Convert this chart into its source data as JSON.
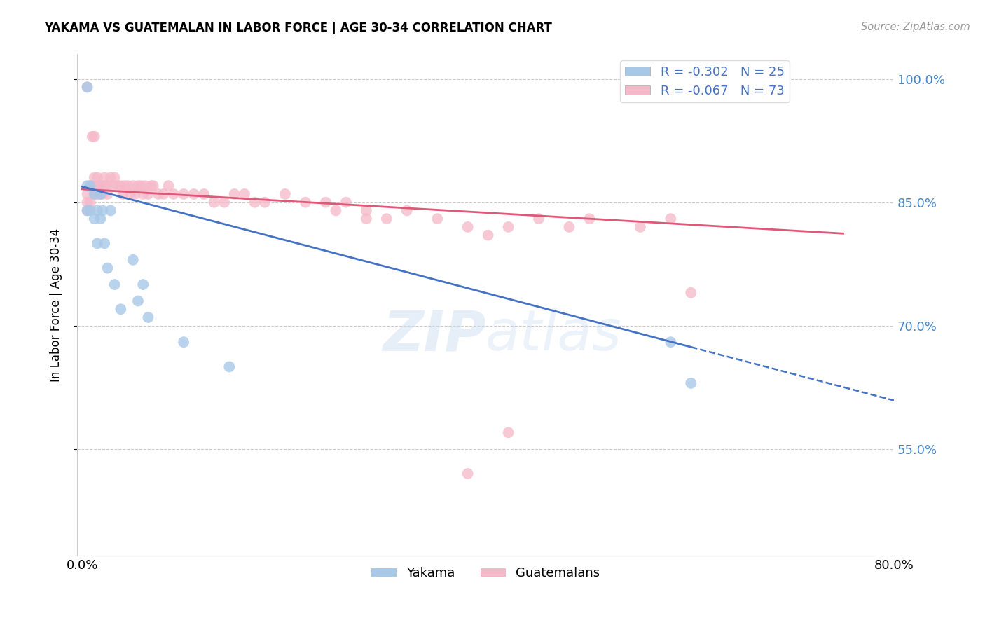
{
  "title": "YAKAMA VS GUATEMALAN IN LABOR FORCE | AGE 30-34 CORRELATION CHART",
  "source": "Source: ZipAtlas.com",
  "ylabel": "In Labor Force | Age 30-34",
  "xlim": [
    -0.005,
    0.8
  ],
  "ylim": [
    0.42,
    1.03
  ],
  "yticks": [
    0.55,
    0.7,
    0.85,
    1.0
  ],
  "ytick_labels": [
    "55.0%",
    "70.0%",
    "85.0%",
    "100.0%"
  ],
  "yakama_color": "#a8c8e8",
  "guatemalan_color": "#f5b8c8",
  "trendline_yakama_color": "#4472c4",
  "trendline_guatemalan_color": "#e05878",
  "legend_label_yakama": "R = -0.302   N = 25",
  "legend_label_guatemalan": "R = -0.067   N = 73",
  "watermark": "ZIPatlas",
  "yakama_x": [
    0.005,
    0.005,
    0.005,
    0.008,
    0.008,
    0.012,
    0.012,
    0.015,
    0.015,
    0.018,
    0.018,
    0.02,
    0.022,
    0.025,
    0.028,
    0.032,
    0.038,
    0.05,
    0.055,
    0.06,
    0.065,
    0.1,
    0.145,
    0.58,
    0.6
  ],
  "yakama_y": [
    0.99,
    0.87,
    0.84,
    0.87,
    0.84,
    0.86,
    0.83,
    0.84,
    0.8,
    0.86,
    0.83,
    0.84,
    0.8,
    0.77,
    0.84,
    0.75,
    0.72,
    0.78,
    0.73,
    0.75,
    0.71,
    0.68,
    0.65,
    0.68,
    0.63
  ],
  "guatemalan_x": [
    0.005,
    0.008,
    0.01,
    0.012,
    0.012,
    0.015,
    0.015,
    0.018,
    0.018,
    0.02,
    0.02,
    0.022,
    0.022,
    0.025,
    0.025,
    0.028,
    0.03,
    0.032,
    0.035,
    0.038,
    0.04,
    0.042,
    0.045,
    0.048,
    0.05,
    0.052,
    0.055,
    0.058,
    0.06,
    0.062,
    0.065,
    0.068,
    0.07,
    0.075,
    0.08,
    0.085,
    0.09,
    0.1,
    0.11,
    0.12,
    0.13,
    0.14,
    0.15,
    0.16,
    0.17,
    0.18,
    0.2,
    0.22,
    0.24,
    0.26,
    0.28,
    0.3,
    0.32,
    0.35,
    0.38,
    0.4,
    0.42,
    0.45,
    0.48,
    0.5,
    0.55,
    0.58,
    0.005,
    0.005,
    0.005,
    0.008,
    0.012,
    0.015,
    0.25,
    0.28,
    0.6,
    0.42,
    0.38
  ],
  "guatemalan_y": [
    0.99,
    0.87,
    0.93,
    0.88,
    0.93,
    0.88,
    0.87,
    0.87,
    0.86,
    0.87,
    0.86,
    0.88,
    0.87,
    0.87,
    0.86,
    0.88,
    0.87,
    0.88,
    0.87,
    0.87,
    0.86,
    0.87,
    0.87,
    0.86,
    0.87,
    0.86,
    0.87,
    0.87,
    0.86,
    0.87,
    0.86,
    0.87,
    0.87,
    0.86,
    0.86,
    0.87,
    0.86,
    0.86,
    0.86,
    0.86,
    0.85,
    0.85,
    0.86,
    0.86,
    0.85,
    0.85,
    0.86,
    0.85,
    0.85,
    0.85,
    0.84,
    0.83,
    0.84,
    0.83,
    0.82,
    0.81,
    0.82,
    0.83,
    0.82,
    0.83,
    0.82,
    0.83,
    0.86,
    0.85,
    0.84,
    0.85,
    0.86,
    0.86,
    0.84,
    0.83,
    0.74,
    0.57,
    0.52
  ],
  "trend_yakama_x0": 0.0,
  "trend_yakama_y0": 0.869,
  "trend_yakama_x1": 0.6,
  "trend_yakama_y1": 0.674,
  "trend_yakama_xdash1": 0.8,
  "trend_yakama_ydash1": 0.609,
  "trend_guatemalan_x0": 0.0,
  "trend_guatemalan_y0": 0.866,
  "trend_guatemalan_x1": 0.75,
  "trend_guatemalan_y1": 0.812
}
